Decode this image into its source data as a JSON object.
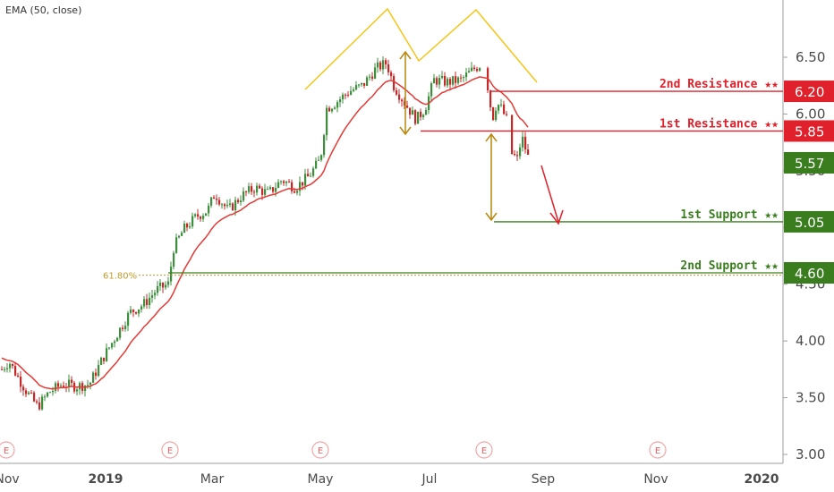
{
  "indicator_label": "EMA (50, close)",
  "chart_data": {
    "type": "candlestick",
    "y_axis": {
      "ticks": [
        "3.00",
        "3.50",
        "4.00",
        "4.50",
        "5.00",
        "5.50",
        "6.00",
        "6.50"
      ],
      "range": [
        2.98,
        7.0
      ]
    },
    "x_axis": {
      "ticks": [
        "Nov",
        "2019",
        "Mar",
        "May",
        "Jul",
        "Sep",
        "Nov",
        "2020"
      ]
    },
    "fib_label": "61.80%",
    "levels": [
      {
        "name": "2nd Resistance",
        "text": "2nd Resistance ★★",
        "value": "6.20",
        "price": 6.2,
        "kind": "resistance"
      },
      {
        "name": "1st Resistance",
        "text": "1st Resistance ★★",
        "value": "5.85",
        "price": 5.85,
        "kind": "resistance"
      },
      {
        "name": "current",
        "text": "",
        "value": "5.57",
        "price": 5.57,
        "kind": "current"
      },
      {
        "name": "1st Support",
        "text": "1st Support ★★",
        "value": "5.05",
        "price": 5.05,
        "kind": "support"
      },
      {
        "name": "2nd Support",
        "text": "2nd Support ★★",
        "value": "4.60",
        "price": 4.6,
        "kind": "support"
      }
    ],
    "fib_price": 4.58,
    "earnings_marker": "E",
    "colors": {
      "up": "#3d8f3d",
      "down": "#c62828",
      "ema": "#e53935",
      "resistance": "#e0202a",
      "support": "#3a7d1e",
      "pattern": "#f5c518",
      "measure": "#b8860b",
      "fib": "#c49a2a"
    }
  }
}
